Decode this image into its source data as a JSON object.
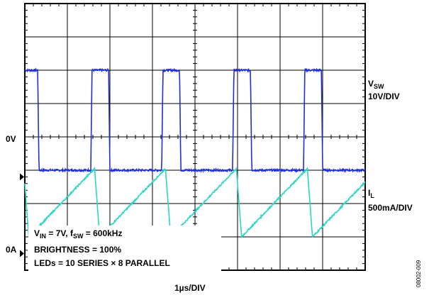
{
  "chart_data": {
    "type": "line",
    "xlabel": "1µs/DIV",
    "grid": true,
    "x_divisions": 8,
    "y_divisions": 8,
    "series": [
      {
        "name_main": "V",
        "name_sub": "SW",
        "scale": "10V/DIV",
        "zero_label": "0V",
        "color": "#1f2fd6",
        "zero_div": 2.8,
        "low_div": 3.0,
        "high_div": 6.0,
        "period_us": 1.667,
        "first_rise_us": 1.55,
        "high_width_us": 0.42,
        "edge_us": 0.03
      },
      {
        "name_main": "I",
        "name_sub": "L",
        "scale": "500mA/DIV",
        "zero_label": "0A",
        "color": "#2ad6c6",
        "zero_div": 0.5,
        "valley_div": 1.0,
        "peak_div": 3.05,
        "period_us": 1.667,
        "first_peak_us": 1.64,
        "fall_us": 0.12
      }
    ],
    "annotations": {
      "line1": {
        "v_main": "V",
        "v_sub": "IN",
        "v_text": " = 7V, ",
        "f_main": "f",
        "f_sub": "SW",
        "f_text": " = 600kHz"
      },
      "line2": "BRIGHTNESS = 100%",
      "line3": "LEDs = 10 SERIES × 8 PARALLEL"
    },
    "figure_id": "08002-009"
  }
}
